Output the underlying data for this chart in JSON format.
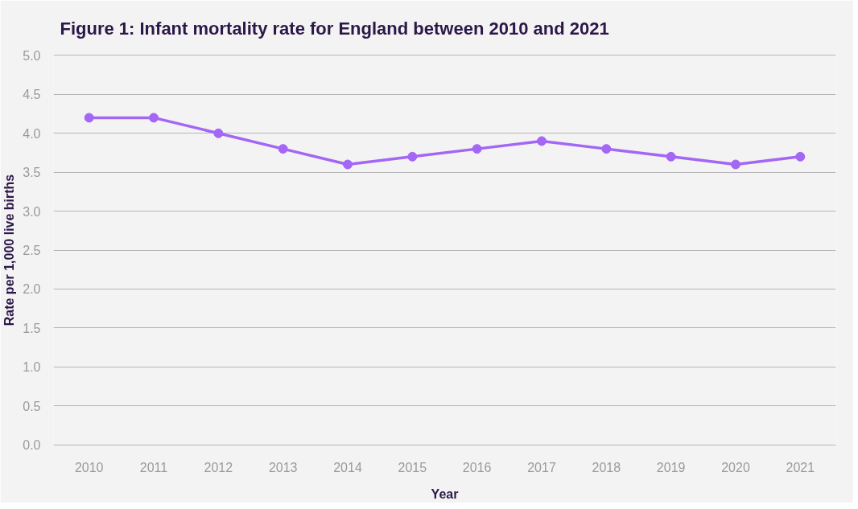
{
  "chart_data": {
    "type": "line",
    "title": "Figure 1: Infant mortality rate for England between 2010 and 2021",
    "xlabel": "Year",
    "ylabel": "Rate per 1,000 live births",
    "categories": [
      "2010",
      "2011",
      "2012",
      "2013",
      "2014",
      "2015",
      "2016",
      "2017",
      "2018",
      "2019",
      "2020",
      "2021"
    ],
    "series": [
      {
        "color": "#a366f5",
        "values": [
          4.2,
          4.2,
          4.0,
          3.8,
          3.6,
          3.7,
          3.8,
          3.9,
          3.8,
          3.7,
          3.6,
          3.7
        ]
      }
    ],
    "ylim": [
      0,
      5
    ],
    "yticks": [
      {
        "value": 0,
        "label": "0.0"
      },
      0.5,
      {
        "value": 1,
        "label": "1.0"
      },
      1.5,
      {
        "value": 2,
        "label": "2.0"
      },
      2.5,
      {
        "value": 3,
        "label": "3.0"
      },
      3.5,
      {
        "value": 4,
        "label": "4.0"
      },
      4.5,
      {
        "value": 5,
        "label": "5.0"
      }
    ],
    "grid": "y",
    "marker": "circle",
    "line_style": "solid"
  }
}
